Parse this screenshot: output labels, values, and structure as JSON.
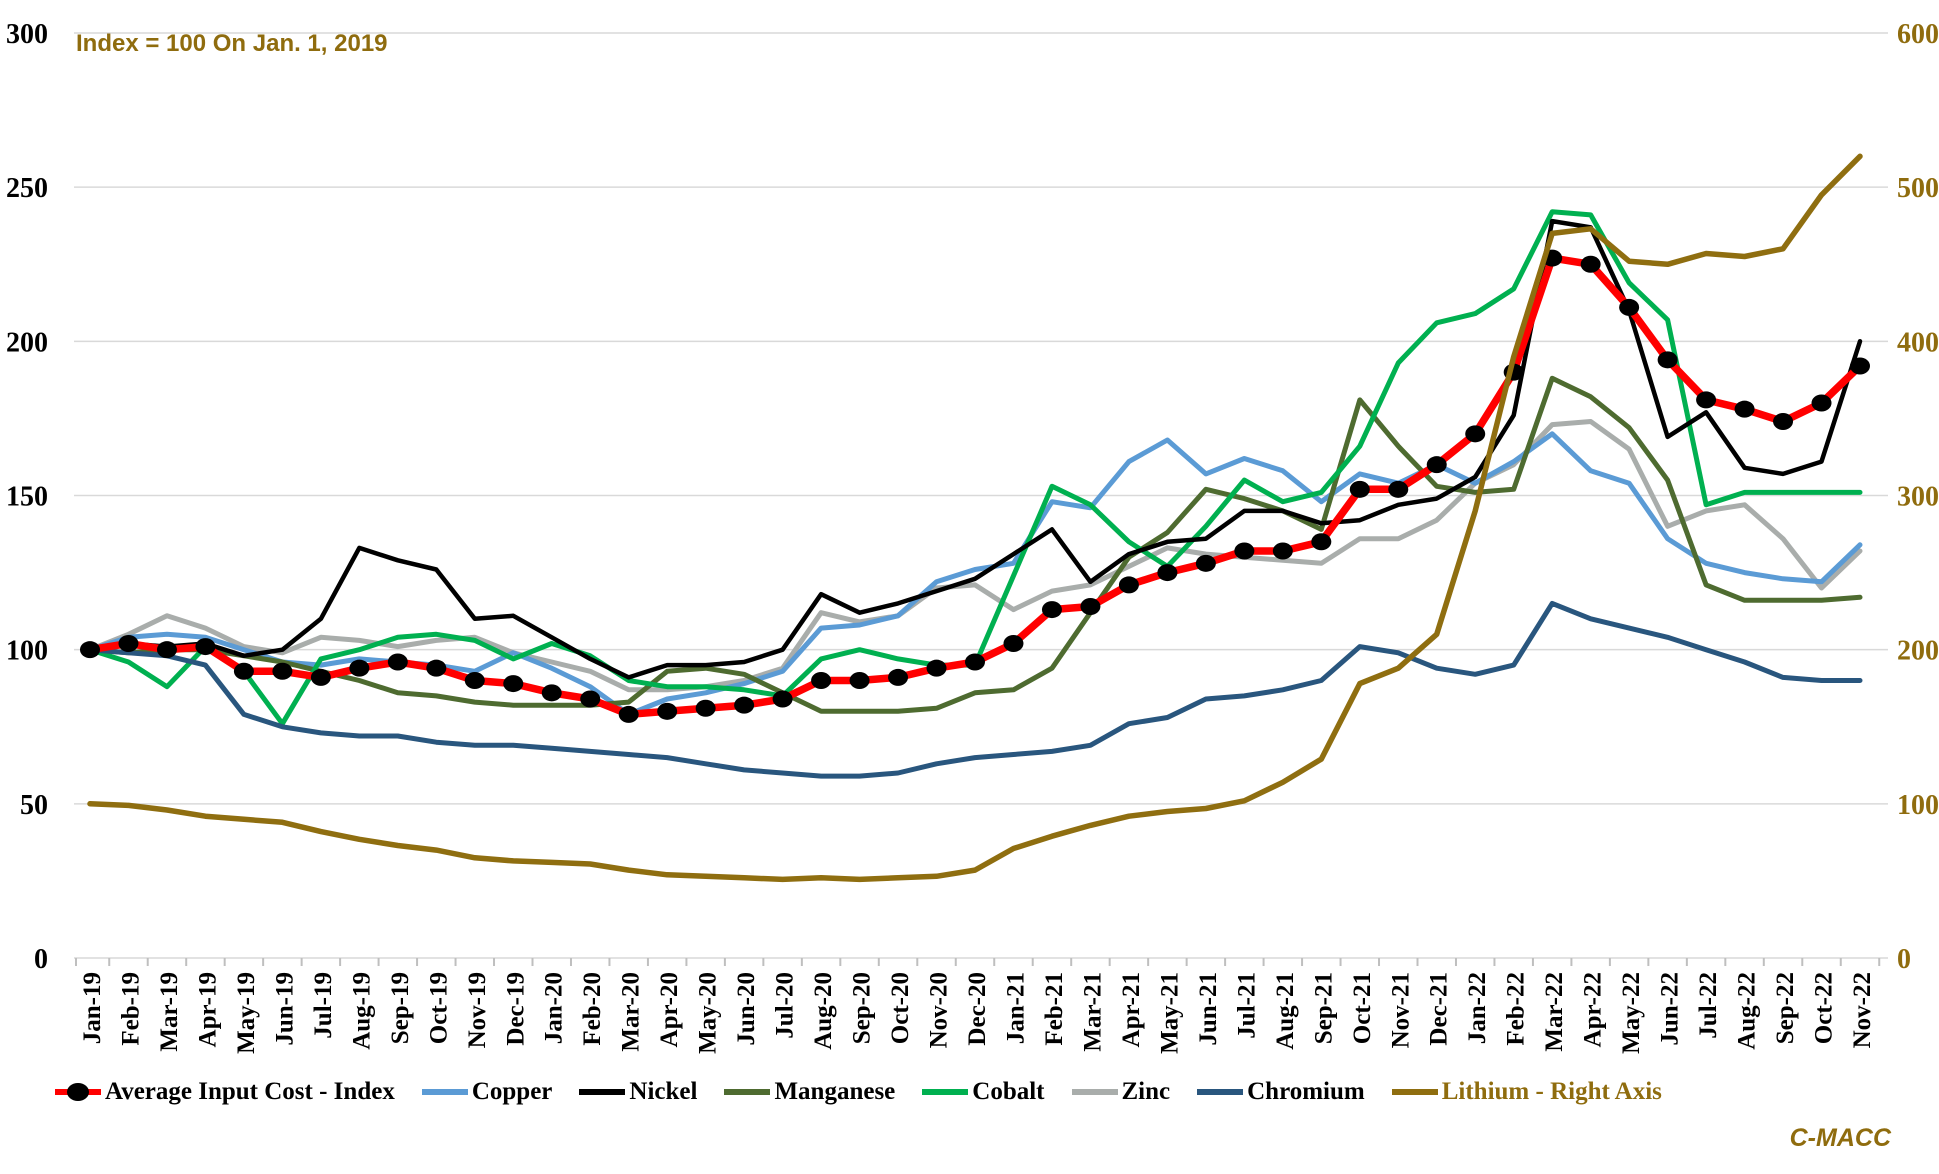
{
  "annotation": {
    "text": "Index = 100 On Jan. 1, 2019"
  },
  "watermark": {
    "text": "C-MACC"
  },
  "colors": {
    "gold_text": "#8F6C0E",
    "grid": "#D9D9D9",
    "axis_tick": "#BFBFBF",
    "axis_label": "#000000",
    "background": "#FFFFFF"
  },
  "chart_data": {
    "type": "line",
    "title": "Index = 100 On Jan. 1, 2019",
    "xlabel": "",
    "ylabel_left": "",
    "ylabel_right": "",
    "ylim_left": [
      0,
      300
    ],
    "ylim_right": [
      0,
      600
    ],
    "left_ticks": [
      300,
      250,
      200,
      150,
      100,
      50,
      0
    ],
    "right_ticks": [
      600,
      500,
      400,
      300,
      200,
      100,
      0
    ],
    "grid": true,
    "legend_position": "bottom",
    "categories": [
      "Jan-19",
      "Feb-19",
      "Mar-19",
      "Apr-19",
      "May-19",
      "Jun-19",
      "Jul-19",
      "Aug-19",
      "Sep-19",
      "Oct-19",
      "Nov-19",
      "Dec-19",
      "Jan-20",
      "Feb-20",
      "Mar-20",
      "Apr-20",
      "May-20",
      "Jun-20",
      "Jul-20",
      "Aug-20",
      "Sep-20",
      "Oct-20",
      "Nov-20",
      "Dec-20",
      "Jan-21",
      "Feb-21",
      "Mar-21",
      "Apr-21",
      "May-21",
      "Jun-21",
      "Jul-21",
      "Aug-21",
      "Sep-21",
      "Oct-21",
      "Nov-21",
      "Dec-21",
      "Jan-22",
      "Feb-22",
      "Mar-22",
      "Apr-22",
      "May-22",
      "Jun-22",
      "Jul-22",
      "Aug-22",
      "Sep-22",
      "Oct-22",
      "Nov-22"
    ],
    "series": [
      {
        "name": "Zinc",
        "axis": "left",
        "color": "#A9ADAB",
        "width": 5,
        "marker": false,
        "label_color": "#000000",
        "values": [
          100,
          105,
          111,
          107,
          101,
          99,
          104,
          103,
          101,
          103,
          104,
          99,
          96,
          93,
          87,
          87,
          88,
          90,
          94,
          112,
          109,
          111,
          120,
          121,
          113,
          119,
          121,
          127,
          133,
          131,
          130,
          129,
          128,
          136,
          136,
          142,
          154,
          160,
          173,
          174,
          165,
          140,
          145,
          147,
          136,
          120,
          132
        ]
      },
      {
        "name": "Copper",
        "axis": "left",
        "color": "#5B9BD5",
        "width": 5,
        "marker": false,
        "label_color": "#000000",
        "values": [
          100,
          104,
          105,
          104,
          100,
          96,
          95,
          97,
          96,
          95,
          93,
          99,
          94,
          88,
          79,
          84,
          86,
          89,
          93,
          107,
          108,
          111,
          122,
          126,
          128,
          148,
          146,
          161,
          168,
          157,
          162,
          158,
          148,
          157,
          154,
          160,
          154,
          161,
          170,
          158,
          154,
          136,
          128,
          125,
          123,
          122,
          134
        ]
      },
      {
        "name": "Manganese",
        "axis": "left",
        "color": "#4E6B30",
        "width": 5,
        "marker": false,
        "label_color": "#000000",
        "values": [
          100,
          99,
          100,
          100,
          98,
          96,
          93,
          90,
          86,
          85,
          83,
          82,
          82,
          82,
          83,
          93,
          94,
          92,
          86,
          80,
          80,
          80,
          81,
          86,
          87,
          94,
          112,
          130,
          138,
          152,
          149,
          145,
          139,
          181,
          166,
          153,
          151,
          152,
          188,
          182,
          172,
          155,
          121,
          116,
          116,
          116,
          117
        ]
      },
      {
        "name": "Cobalt",
        "axis": "left",
        "color": "#00B050",
        "width": 5,
        "marker": false,
        "label_color": "#000000",
        "values": [
          100,
          96,
          88,
          101,
          93,
          76,
          97,
          100,
          104,
          105,
          103,
          97,
          102,
          98,
          90,
          88,
          88,
          87,
          85,
          97,
          100,
          97,
          95,
          95,
          124,
          153,
          147,
          135,
          127,
          140,
          155,
          148,
          151,
          166,
          193,
          206,
          209,
          217,
          242,
          241,
          219,
          207,
          147,
          151,
          151,
          151,
          151
        ]
      },
      {
        "name": "Chromium",
        "axis": "left",
        "color": "#29567E",
        "width": 5,
        "marker": false,
        "label_color": "#000000",
        "values": [
          100,
          99,
          98,
          95,
          79,
          75,
          73,
          72,
          72,
          70,
          69,
          69,
          68,
          67,
          66,
          65,
          63,
          61,
          60,
          59,
          59,
          60,
          63,
          65,
          66,
          67,
          69,
          76,
          78,
          84,
          85,
          87,
          90,
          101,
          99,
          94,
          92,
          95,
          115,
          110,
          107,
          104,
          100,
          96,
          91,
          90,
          90
        ]
      },
      {
        "name": "Nickel",
        "axis": "left",
        "color": "#000000",
        "width": 4.5,
        "marker": false,
        "label_color": "#000000",
        "values": [
          100,
          102,
          101,
          102,
          98,
          100,
          110,
          133,
          129,
          126,
          110,
          111,
          104,
          97,
          91,
          95,
          95,
          96,
          100,
          118,
          112,
          115,
          119,
          123,
          131,
          139,
          122,
          131,
          135,
          136,
          145,
          145,
          141,
          142,
          147,
          149,
          156,
          176,
          239,
          237,
          210,
          169,
          177,
          159,
          157,
          161,
          200
        ]
      },
      {
        "name": "Average Input Cost - Index",
        "axis": "left",
        "color": "#FF0000",
        "width": 7.5,
        "marker": true,
        "label_color": "#000000",
        "values": [
          100,
          102,
          100,
          101,
          93,
          93,
          91,
          94,
          96,
          94,
          90,
          89,
          86,
          84,
          79,
          80,
          81,
          82,
          84,
          90,
          90,
          91,
          94,
          96,
          102,
          113,
          114,
          121,
          125,
          128,
          132,
          132,
          135,
          152,
          152,
          160,
          170,
          190,
          227,
          225,
          211,
          194,
          181,
          178,
          174,
          180,
          192
        ]
      },
      {
        "name": "Lithium - Right Axis",
        "axis": "right",
        "color": "#8F6E10",
        "width": 5.5,
        "marker": false,
        "label_color": "#8F6C0E",
        "values": [
          100,
          99,
          96,
          92,
          90,
          88,
          82,
          77,
          73,
          70,
          65,
          63,
          62,
          61,
          57,
          54,
          53,
          52,
          51,
          52,
          51,
          52,
          53,
          57,
          71,
          79,
          86,
          92,
          95,
          97,
          102,
          114,
          129,
          178,
          188,
          210,
          290,
          390,
          470,
          473,
          452,
          450,
          457,
          455,
          460,
          495,
          520
        ]
      }
    ],
    "legend_order": [
      "Average Input Cost - Index",
      "Copper",
      "Nickel",
      "Manganese",
      "Cobalt",
      "Zinc",
      "Chromium",
      "Lithium - Right Axis"
    ]
  }
}
